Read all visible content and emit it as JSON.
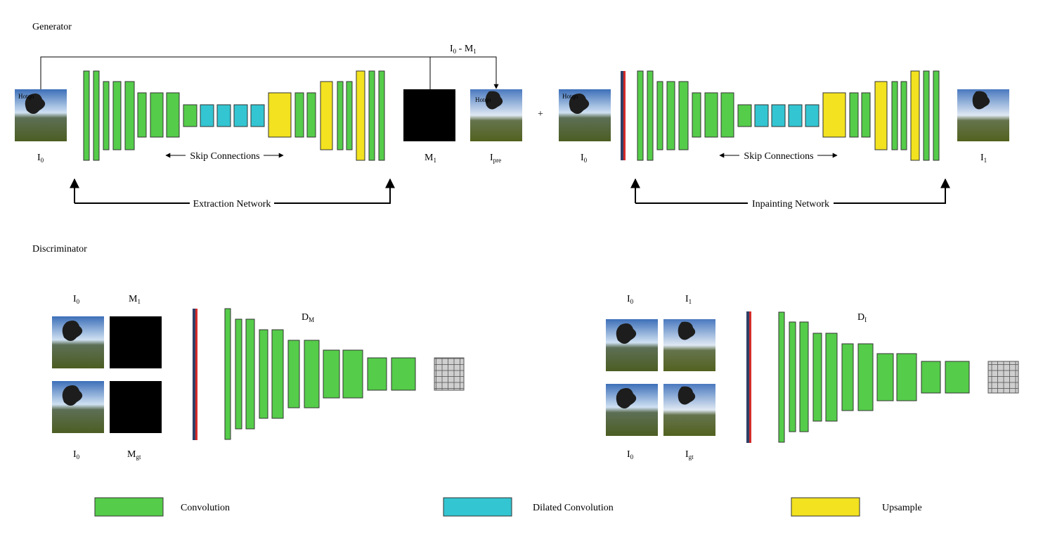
{
  "sections": {
    "generator": "Generator",
    "discriminator": "Discriminator"
  },
  "generator": {
    "io_label_top": {
      "main": "I",
      "sub": "0",
      "mid": " - M",
      "sub2": "1"
    },
    "extraction_network": "Extraction Network",
    "inpainting_network": "Inpainting Network",
    "skip_connections": "Skip Connections",
    "plus": "+",
    "labels": {
      "i0": {
        "main": "I",
        "sub": "0"
      },
      "m1": {
        "main": "M",
        "sub": "1"
      },
      "ipre": {
        "main": "I",
        "sub": "pre"
      },
      "i1": {
        "main": "I",
        "sub": "1"
      }
    }
  },
  "discriminator": {
    "dm": {
      "main": "D",
      "sub": "M"
    },
    "di": {
      "main": "D",
      "sub": "I"
    },
    "left": {
      "top_a": {
        "main": "I",
        "sub": "0"
      },
      "top_b": {
        "main": "M",
        "sub": "1"
      },
      "bot_a": {
        "main": "I",
        "sub": "0"
      },
      "bot_b": {
        "main": "M",
        "sub": "gt"
      }
    },
    "right": {
      "top_a": {
        "main": "I",
        "sub": "0"
      },
      "top_b": {
        "main": "I",
        "sub": "1"
      },
      "bot_a": {
        "main": "I",
        "sub": "0"
      },
      "bot_b": {
        "main": "I",
        "sub": "gt"
      }
    }
  },
  "legend": {
    "convolution": "Convolution",
    "dilated": "Dilated Convolution",
    "upsample": "Upsample"
  },
  "colors": {
    "conv": "#55cc4a",
    "dilated": "#33c5d1",
    "upsample": "#f2e21f",
    "concat_blue": "#2f3f66",
    "concat_red": "#d42b2b"
  }
}
